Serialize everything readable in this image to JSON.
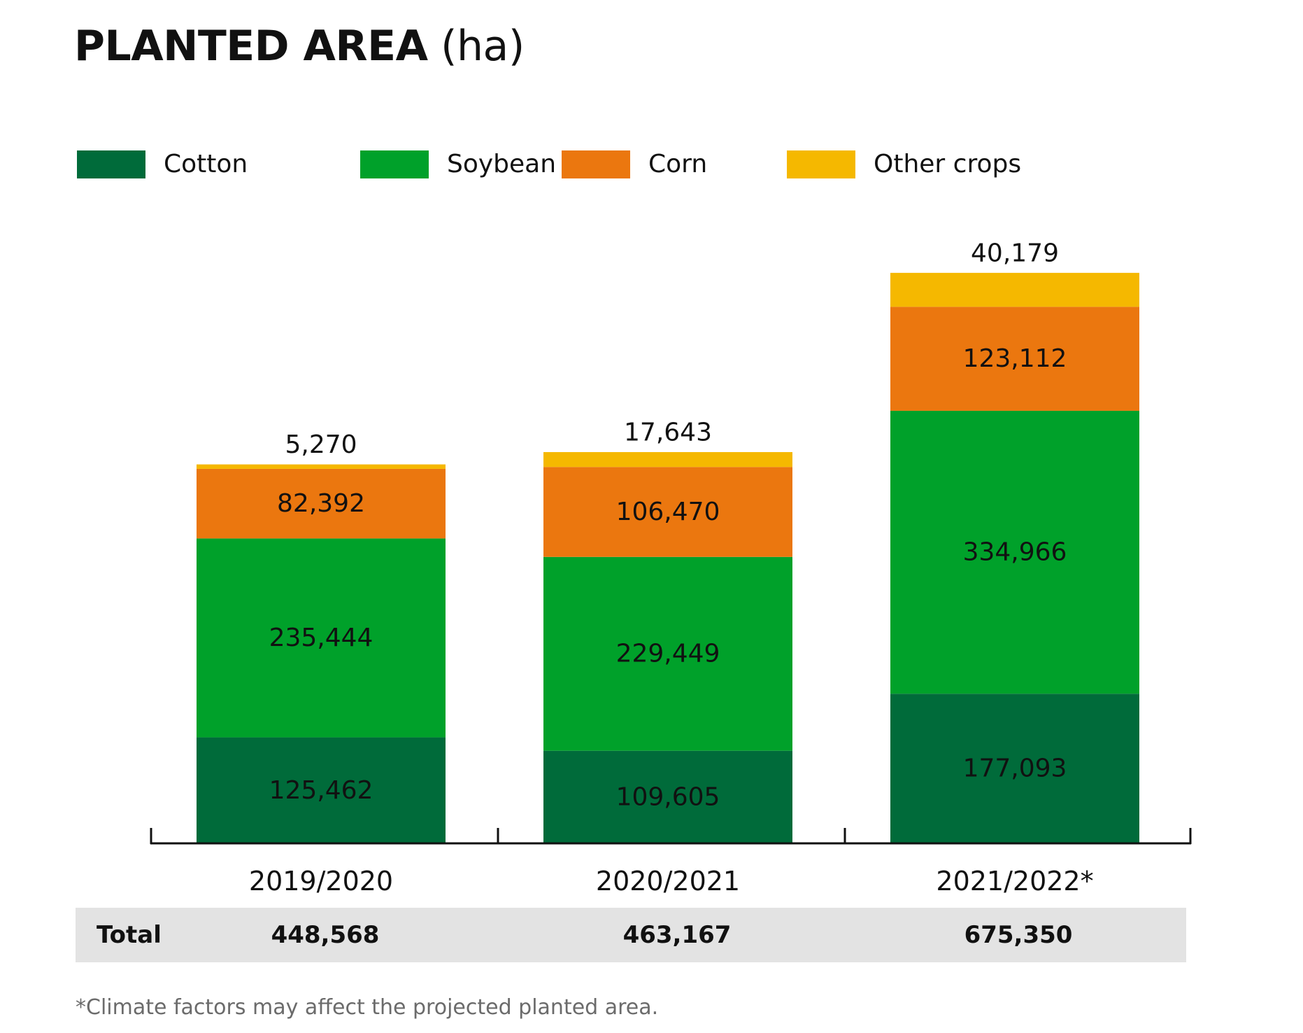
{
  "title": {
    "main": "PLANTED AREA",
    "unit": "(ha)"
  },
  "chart_data": {
    "type": "bar",
    "stacked": true,
    "categories": [
      "2019/2020",
      "2020/2021",
      "2021/2022*"
    ],
    "series": [
      {
        "name": "Cotton",
        "color": "#006b3a",
        "values": [
          125462,
          109605,
          177093
        ],
        "labels": [
          "125,462",
          "109,605",
          "177,093"
        ]
      },
      {
        "name": "Soybean",
        "color": "#00a12a",
        "values": [
          235444,
          229449,
          334966
        ],
        "labels": [
          "235,444",
          "229,449",
          "334,966"
        ]
      },
      {
        "name": "Corn",
        "color": "#eb770f",
        "values": [
          82392,
          106470,
          123112
        ],
        "labels": [
          "82,392",
          "106,470",
          "123,112"
        ]
      },
      {
        "name": "Other crops",
        "color": "#f5b800",
        "values": [
          5270,
          17643,
          40179
        ],
        "labels": [
          "5,270",
          "17,643",
          "40,179"
        ]
      }
    ],
    "legend_position": "top",
    "grid": false
  },
  "totals": {
    "label": "Total",
    "values": [
      "448,568",
      "463,167",
      "675,350"
    ]
  },
  "footnote": "*Climate factors may affect the projected planted area."
}
